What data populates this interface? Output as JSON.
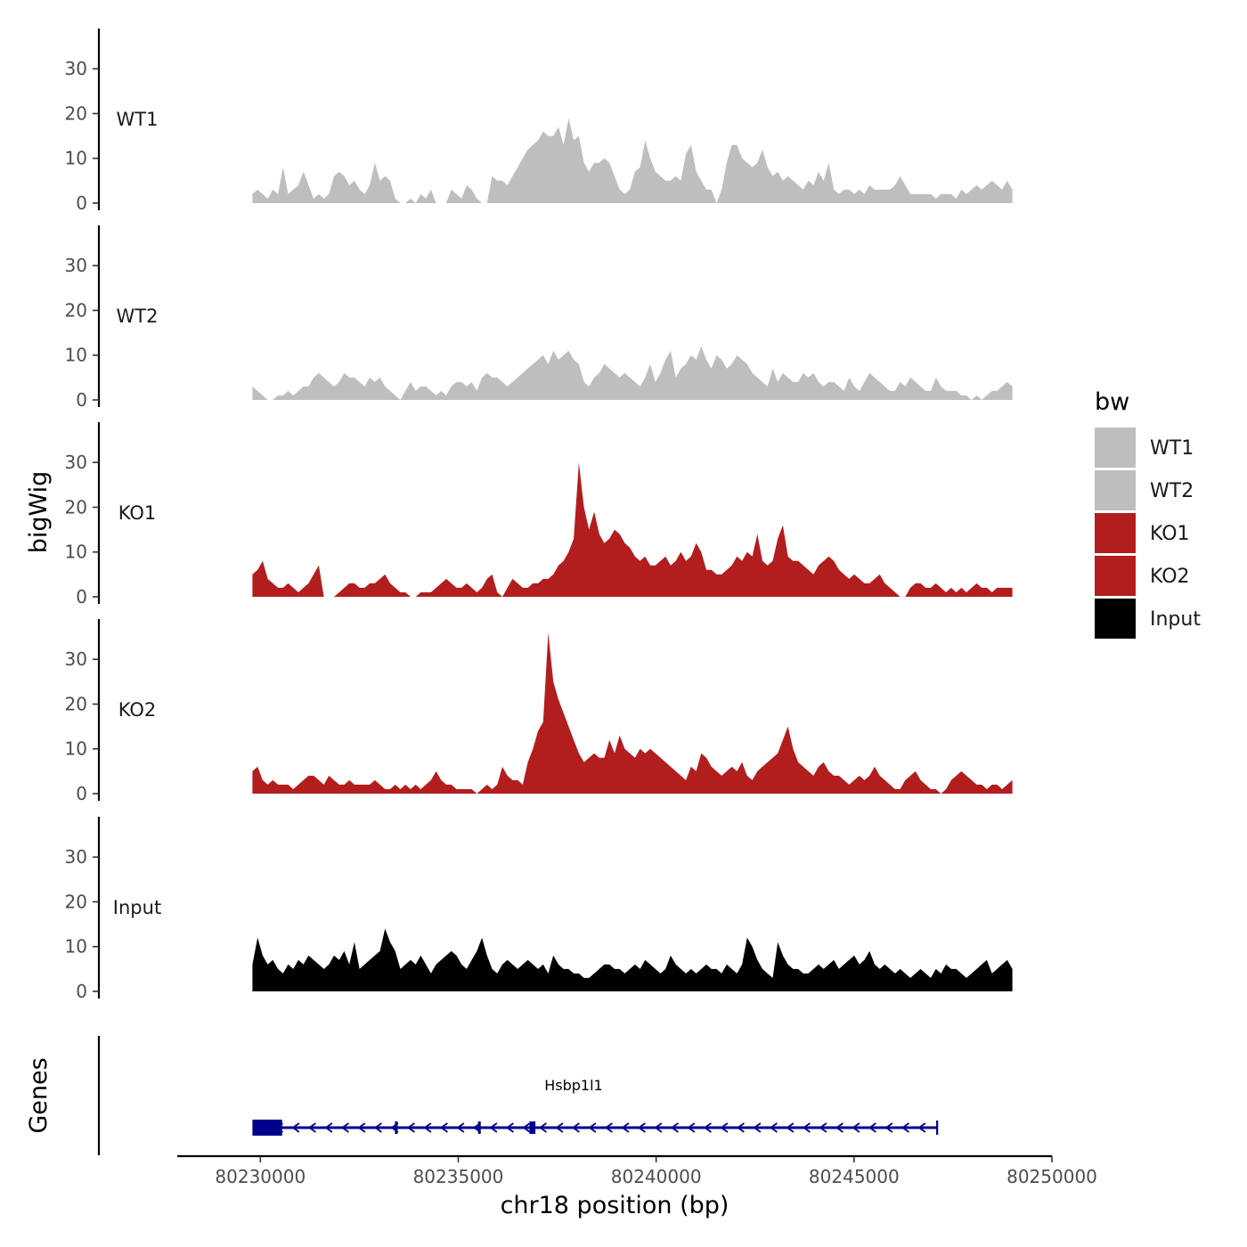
{
  "chart_data": {
    "type": "area",
    "ylabel": "bigWig",
    "xlabel": "chr18 position (bp)",
    "xlim": [
      80227900,
      80250000
    ],
    "ylim": [
      0,
      39
    ],
    "y_ticks": [
      0,
      10,
      20,
      30
    ],
    "x_ticks": [
      80230000,
      80235000,
      80240000,
      80245000,
      80250000
    ],
    "x_tick_labels": [
      "80230000",
      "80235000",
      "80240000",
      "80245000",
      "80250000"
    ],
    "x_range": [
      80229800,
      80249000
    ],
    "tracks": [
      {
        "name": "WT1",
        "color": "#bebebe",
        "values": [
          2,
          3,
          2,
          1,
          3,
          2,
          8,
          2,
          3,
          4,
          7,
          4,
          1,
          2,
          1,
          2,
          6,
          7,
          6,
          4,
          5,
          3,
          2,
          4,
          9,
          5,
          6,
          5,
          1,
          0,
          0,
          1,
          0,
          2,
          1,
          3,
          0,
          0,
          0,
          3,
          2,
          1,
          4,
          3,
          1,
          0,
          0,
          6,
          5,
          5,
          4,
          6,
          8,
          10,
          12,
          13,
          14,
          16,
          15,
          15,
          17,
          13,
          19,
          14,
          15,
          9,
          7,
          9,
          9,
          10,
          9,
          6,
          3,
          2,
          3,
          7,
          8,
          14,
          10,
          7,
          6,
          5,
          5,
          6,
          5,
          11,
          13,
          7,
          5,
          3,
          3,
          0,
          3,
          9,
          13,
          13,
          10,
          9,
          8,
          9,
          12,
          8,
          6,
          7,
          5,
          6,
          5,
          4,
          3,
          5,
          4,
          7,
          5,
          9,
          3,
          2,
          3,
          3,
          2,
          3,
          2,
          4,
          3,
          3,
          3,
          3,
          4,
          6,
          4,
          2,
          2,
          2,
          2,
          2,
          1,
          2,
          2,
          2,
          1,
          3,
          2,
          3,
          4,
          3,
          4,
          5,
          4,
          3,
          5,
          3
        ]
      },
      {
        "name": "WT2",
        "color": "#bebebe",
        "values": [
          3,
          2,
          1,
          0,
          0,
          1,
          1,
          2,
          1,
          2,
          3,
          3,
          5,
          6,
          5,
          4,
          3,
          4,
          6,
          5,
          5,
          4,
          3,
          5,
          4,
          5,
          3,
          2,
          1,
          0,
          2,
          4,
          2,
          3,
          3,
          2,
          1,
          2,
          1,
          3,
          4,
          4,
          3,
          4,
          2,
          5,
          6,
          5,
          5,
          4,
          3,
          4,
          5,
          6,
          7,
          8,
          9,
          10,
          8,
          11,
          9,
          10,
          11,
          9,
          8,
          4,
          3,
          5,
          6,
          8,
          7,
          6,
          5,
          6,
          5,
          4,
          3,
          5,
          8,
          4,
          6,
          9,
          11,
          5,
          7,
          8,
          10,
          9,
          12,
          9,
          7,
          10,
          9,
          7,
          8,
          10,
          9,
          8,
          6,
          5,
          4,
          3,
          7,
          4,
          6,
          5,
          4,
          4,
          6,
          5,
          6,
          4,
          3,
          4,
          4,
          3,
          2,
          5,
          3,
          2,
          4,
          6,
          5,
          4,
          3,
          2,
          2,
          4,
          3,
          5,
          4,
          3,
          2,
          2,
          5,
          3,
          2,
          2,
          2,
          1,
          1,
          0,
          1,
          0,
          1,
          2,
          2,
          3,
          4,
          3
        ]
      },
      {
        "name": "KO1",
        "color": "#b21d1e",
        "values": [
          5,
          6,
          8,
          4,
          3,
          2,
          2,
          3,
          2,
          1,
          2,
          3,
          5,
          7,
          0,
          0,
          0,
          1,
          2,
          3,
          3,
          2,
          2,
          3,
          3,
          4,
          5,
          3,
          2,
          1,
          1,
          0,
          0,
          1,
          1,
          1,
          2,
          3,
          4,
          3,
          2,
          2,
          3,
          2,
          1,
          2,
          4,
          5,
          1,
          0,
          2,
          4,
          3,
          2,
          2,
          3,
          3,
          4,
          4,
          5,
          7,
          8,
          10,
          13,
          30,
          20,
          15,
          19,
          14,
          12,
          13,
          15,
          14,
          12,
          11,
          9,
          8,
          9,
          7,
          7,
          8,
          9,
          7,
          8,
          10,
          8,
          9,
          12,
          10,
          6,
          6,
          5,
          5,
          6,
          7,
          9,
          8,
          10,
          9,
          14,
          8,
          7,
          8,
          13,
          16,
          9,
          8,
          8,
          7,
          6,
          5,
          7,
          8,
          9,
          8,
          6,
          5,
          4,
          5,
          4,
          3,
          3,
          4,
          5,
          3,
          2,
          1,
          0,
          0,
          2,
          3,
          3,
          2,
          2,
          3,
          2,
          1,
          2,
          1,
          2,
          1,
          2,
          3,
          2,
          2,
          1,
          2,
          2,
          2,
          2
        ]
      },
      {
        "name": "KO2",
        "color": "#b21d1e",
        "values": [
          5,
          6,
          3,
          2,
          3,
          2,
          2,
          2,
          1,
          2,
          3,
          4,
          4,
          3,
          2,
          4,
          3,
          2,
          2,
          3,
          2,
          2,
          2,
          2,
          3,
          2,
          1,
          1,
          2,
          1,
          2,
          1,
          2,
          1,
          2,
          3,
          5,
          3,
          2,
          2,
          1,
          1,
          1,
          1,
          0,
          1,
          2,
          1,
          2,
          6,
          4,
          3,
          3,
          2,
          7,
          10,
          14,
          16,
          36,
          25,
          21,
          18,
          15,
          12,
          9,
          7,
          8,
          9,
          8,
          8,
          12,
          9,
          13,
          10,
          9,
          8,
          10,
          9,
          10,
          9,
          8,
          7,
          6,
          5,
          4,
          3,
          6,
          5,
          9,
          8,
          6,
          5,
          4,
          5,
          6,
          5,
          7,
          4,
          3,
          5,
          6,
          7,
          8,
          9,
          12,
          15,
          10,
          7,
          6,
          5,
          4,
          6,
          7,
          5,
          4,
          4,
          3,
          2,
          3,
          4,
          3,
          4,
          6,
          4,
          3,
          2,
          1,
          1,
          3,
          4,
          5,
          3,
          2,
          1,
          1,
          0,
          1,
          3,
          4,
          5,
          4,
          3,
          2,
          2,
          1,
          2,
          2,
          1,
          2,
          3
        ]
      },
      {
        "name": "Input",
        "color": "#000000",
        "values": [
          6,
          12,
          8,
          6,
          7,
          5,
          4,
          6,
          5,
          7,
          6,
          8,
          7,
          6,
          5,
          6,
          8,
          7,
          9,
          6,
          11,
          5,
          6,
          7,
          8,
          9,
          14,
          11,
          9,
          5,
          6,
          7,
          6,
          8,
          6,
          4,
          6,
          7,
          8,
          9,
          8,
          6,
          5,
          7,
          9,
          12,
          8,
          5,
          4,
          6,
          7,
          6,
          5,
          6,
          7,
          6,
          5,
          6,
          4,
          8,
          6,
          5,
          5,
          4,
          4,
          3,
          3,
          4,
          5,
          6,
          6,
          5,
          5,
          4,
          5,
          6,
          5,
          7,
          6,
          5,
          4,
          5,
          8,
          6,
          5,
          4,
          5,
          4,
          5,
          6,
          5,
          5,
          4,
          6,
          5,
          4,
          6,
          12,
          10,
          7,
          5,
          4,
          3,
          11,
          8,
          6,
          5,
          5,
          4,
          4,
          5,
          6,
          5,
          6,
          7,
          5,
          6,
          7,
          8,
          6,
          7,
          9,
          6,
          5,
          6,
          5,
          4,
          5,
          4,
          3,
          4,
          5,
          4,
          3,
          5,
          4,
          6,
          5,
          5,
          4,
          3,
          4,
          5,
          6,
          7,
          4,
          5,
          6,
          7,
          5
        ]
      }
    ],
    "legend": {
      "title": "bw",
      "entries": [
        {
          "label": "WT1",
          "color": "#bebebe"
        },
        {
          "label": "WT2",
          "color": "#bebebe"
        },
        {
          "label": "KO1",
          "color": "#b21d1e"
        },
        {
          "label": "KO2",
          "color": "#b21d1e"
        },
        {
          "label": "Input",
          "color": "#000000"
        }
      ]
    },
    "genes_track": {
      "title": "Genes",
      "gene_name": "Hsbp1l1",
      "strand": "-",
      "color": "#00008b",
      "start": 80229800,
      "end": 80247100,
      "exons": [
        [
          80229800,
          80230550
        ],
        [
          80233400,
          80233450
        ],
        [
          80235500,
          80235550
        ],
        [
          80236800,
          80236950
        ]
      ]
    }
  }
}
